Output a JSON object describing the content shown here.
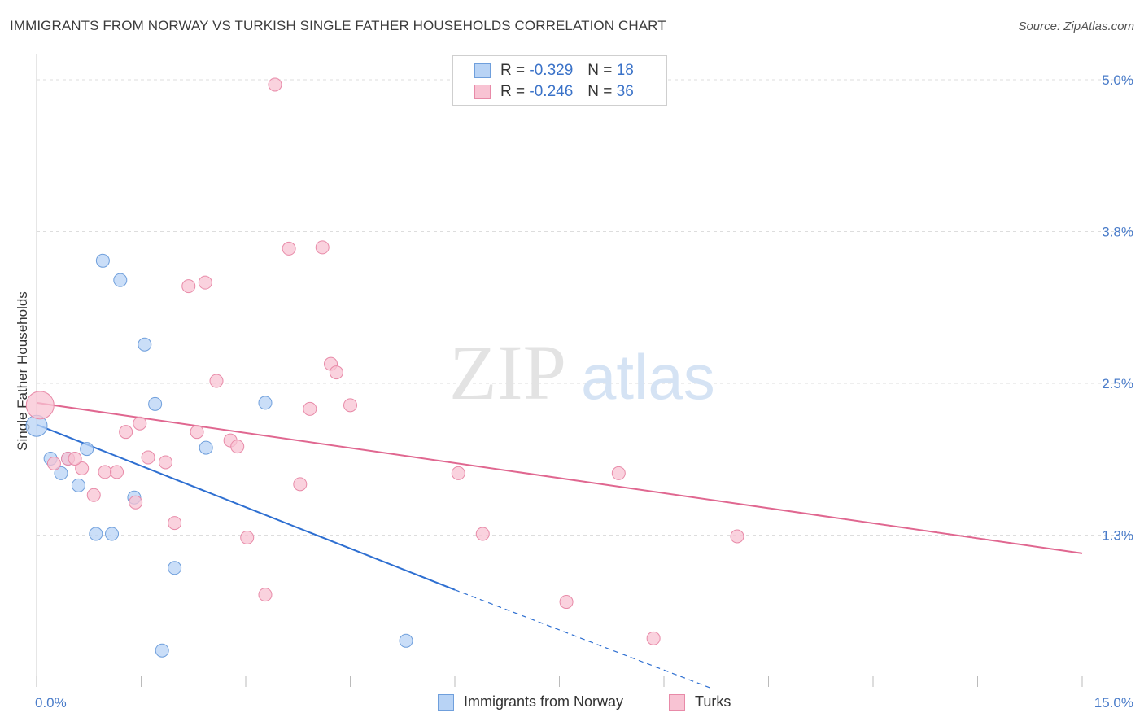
{
  "title": "IMMIGRANTS FROM NORWAY VS TURKISH SINGLE FATHER HOUSEHOLDS CORRELATION CHART",
  "source": "Source: ZipAtlas.com",
  "watermark": {
    "zip": "ZIP",
    "atlas": "atlas"
  },
  "colors": {
    "norway_fill": "#b8d3f5",
    "norway_stroke": "#6f9fdc",
    "norway_line": "#2e6fd1",
    "turks_fill": "#f8c3d3",
    "turks_stroke": "#e88aa8",
    "turks_line": "#e06790",
    "tick_text": "#4a7cc9",
    "grid": "#dddddd"
  },
  "legend_top": {
    "rows": [
      {
        "r_label": "R =",
        "r_value": "-0.329",
        "n_label": "N =",
        "n_value": "18",
        "series": "norway"
      },
      {
        "r_label": "R =",
        "r_value": "-0.246",
        "n_label": "N =",
        "n_value": "36",
        "series": "turks"
      }
    ]
  },
  "legend_bottom": {
    "items": [
      "Immigrants from Norway",
      "Turks"
    ]
  },
  "chart_data": {
    "type": "scatter",
    "title": "IMMIGRANTS FROM NORWAY VS TURKISH SINGLE FATHER HOUSEHOLDS CORRELATION CHART",
    "xlabel": "",
    "ylabel": "Single Father Households",
    "xlim": [
      0,
      15
    ],
    "ylim": [
      0,
      5.0
    ],
    "x_tick_labels": [
      "0.0%",
      "15.0%"
    ],
    "y_ticks": [
      1.25,
      2.5,
      3.75,
      5.0
    ],
    "y_tick_labels": [
      "1.3%",
      "2.5%",
      "3.8%",
      "5.0%"
    ],
    "series": [
      {
        "name": "Immigrants from Norway",
        "key": "norway",
        "points": [
          [
            0.0,
            2.15
          ],
          [
            0.2,
            1.88
          ],
          [
            0.35,
            1.76
          ],
          [
            0.45,
            1.88
          ],
          [
            0.6,
            1.66
          ],
          [
            0.72,
            1.96
          ],
          [
            0.85,
            1.26
          ],
          [
            0.95,
            3.51
          ],
          [
            1.08,
            1.26
          ],
          [
            1.2,
            3.35
          ],
          [
            1.4,
            1.56
          ],
          [
            1.55,
            2.82
          ],
          [
            1.7,
            2.33
          ],
          [
            1.8,
            0.3
          ],
          [
            1.98,
            0.98
          ],
          [
            2.43,
            1.97
          ],
          [
            3.28,
            2.34
          ],
          [
            5.3,
            0.38
          ]
        ],
        "trend": {
          "x0": 0.0,
          "y0": 2.16,
          "x1": 6.0,
          "y1": 0.8,
          "dashed_to_x": 9.72,
          "dashed_to_y": -0.02
        }
      },
      {
        "name": "Turks",
        "key": "turks",
        "points": [
          [
            0.05,
            2.32
          ],
          [
            0.25,
            1.84
          ],
          [
            0.45,
            1.88
          ],
          [
            0.65,
            1.8
          ],
          [
            0.82,
            1.58
          ],
          [
            0.98,
            1.77
          ],
          [
            1.15,
            1.77
          ],
          [
            1.28,
            2.1
          ],
          [
            1.42,
            1.52
          ],
          [
            1.48,
            2.17
          ],
          [
            1.6,
            1.89
          ],
          [
            1.85,
            1.85
          ],
          [
            1.98,
            1.35
          ],
          [
            2.18,
            3.3
          ],
          [
            2.3,
            2.1
          ],
          [
            2.42,
            3.33
          ],
          [
            2.58,
            2.52
          ],
          [
            2.78,
            2.03
          ],
          [
            2.88,
            1.98
          ],
          [
            3.02,
            1.23
          ],
          [
            3.28,
            0.76
          ],
          [
            3.42,
            4.96
          ],
          [
            3.62,
            3.61
          ],
          [
            3.78,
            1.67
          ],
          [
            3.92,
            2.29
          ],
          [
            4.1,
            3.62
          ],
          [
            4.22,
            2.66
          ],
          [
            4.3,
            2.59
          ],
          [
            4.5,
            2.32
          ],
          [
            6.05,
            1.76
          ],
          [
            6.4,
            1.26
          ],
          [
            7.6,
            0.7
          ],
          [
            8.35,
            1.76
          ],
          [
            8.85,
            0.4
          ],
          [
            10.05,
            1.24
          ],
          [
            0.55,
            1.88
          ]
        ],
        "trend": {
          "x0": 0.0,
          "y0": 2.34,
          "x1": 15.0,
          "y1": 1.1
        }
      }
    ]
  }
}
